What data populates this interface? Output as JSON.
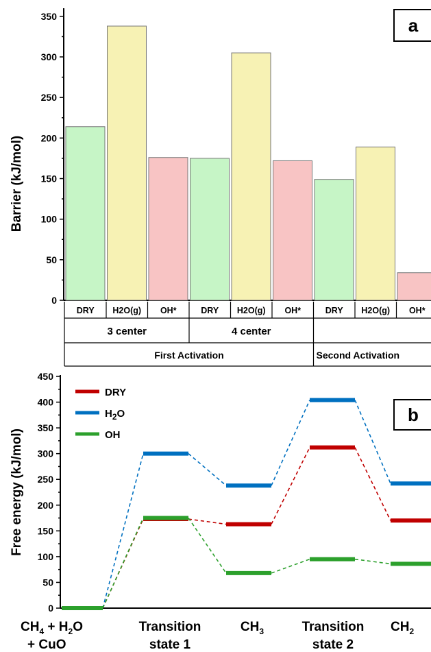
{
  "chart_data": [
    {
      "type": "bar",
      "panel": "a",
      "ylabel": "Barrier (kJ/mol)",
      "ylim": [
        0,
        360
      ],
      "yticks": [
        0,
        50,
        100,
        150,
        200,
        250,
        300,
        350
      ],
      "categories": [
        "DRY",
        "H2O(g)",
        "OH*",
        "DRY",
        "H2O(g)",
        "OH*",
        "DRY",
        "H2O(g)",
        "OH*"
      ],
      "values": [
        214,
        338,
        176,
        175,
        305,
        172,
        149,
        189,
        34
      ],
      "bar_colors": [
        "#c6f5c6",
        "#f7f2b4",
        "#f8c4c4",
        "#c6f5c6",
        "#f7f2b4",
        "#f8c4c4",
        "#c6f5c6",
        "#f7f2b4",
        "#f8c4c4"
      ],
      "groups": [
        {
          "label": "3 center",
          "span": 3
        },
        {
          "label": "4 center",
          "span": 3
        },
        {
          "label": "",
          "span": 3
        }
      ],
      "super_groups": [
        {
          "label": "First Activation",
          "span": 6
        },
        {
          "label": "Second Activation",
          "span": 3
        }
      ],
      "grid": false
    },
    {
      "type": "line",
      "panel": "b",
      "ylabel": "Free energy (kJ/mol)",
      "ylim": [
        0,
        450
      ],
      "yticks": [
        0,
        50,
        100,
        150,
        200,
        250,
        300,
        350,
        400,
        450
      ],
      "states": [
        "CH4 + H2O + CuO",
        "Transition state 1",
        "CH3",
        "Transition state 2",
        "CH2"
      ],
      "series": [
        {
          "name": "DRY",
          "color": "#c00000",
          "values": [
            0,
            173,
            163,
            312,
            170
          ]
        },
        {
          "name": "H2O",
          "color": "#0070c0",
          "values": [
            0,
            300,
            238,
            404,
            242
          ]
        },
        {
          "name": "OH",
          "color": "#2ca02c",
          "values": [
            0,
            175,
            68,
            95,
            86
          ]
        }
      ],
      "legend_position": "top-left",
      "grid": false
    }
  ],
  "labels": {
    "panel_a": "a",
    "panel_b": "b",
    "x_states": [
      {
        "line1": "CH",
        "sub1": "4",
        "rest1": " + H",
        "sub2": "2",
        "rest2": "O",
        "line2": "+ CuO"
      },
      {
        "line1": "Transition",
        "line2": "state 1"
      },
      {
        "line1": "CH",
        "sub1": "3"
      },
      {
        "line1": "Transition",
        "line2": "state 2"
      },
      {
        "line1": "CH",
        "sub1": "2"
      }
    ],
    "legend_h2o_main": "H",
    "legend_h2o_sub": "2",
    "legend_h2o_end": "O"
  }
}
